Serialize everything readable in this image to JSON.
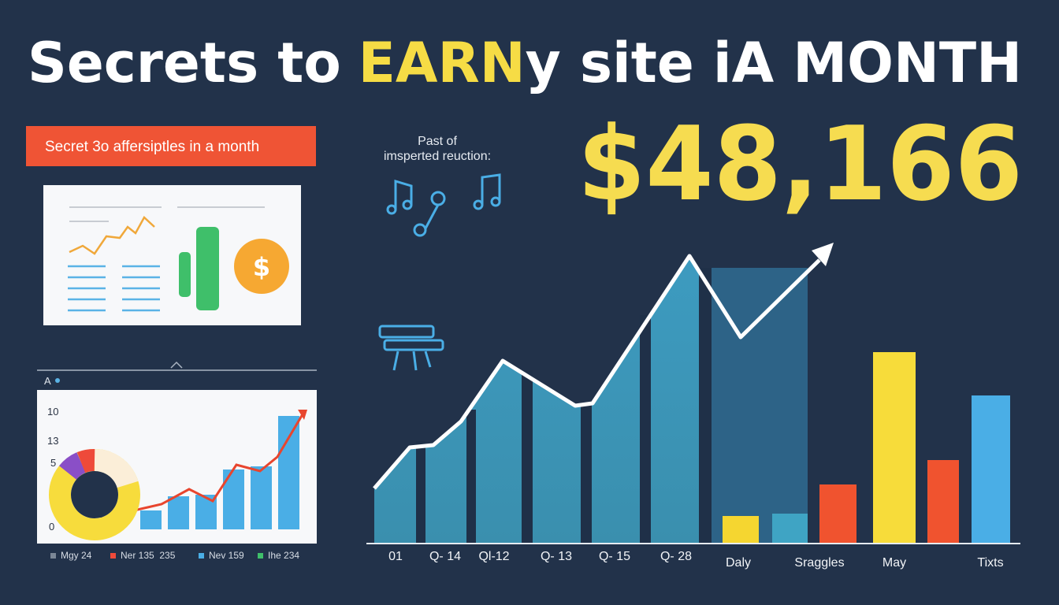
{
  "header": {
    "title_parts": [
      "Secrets to",
      "EARN",
      "y site iA MONTH"
    ]
  },
  "banner": {
    "text": "Secret 3o affersiptles in a month"
  },
  "note": {
    "lines": [
      "Past of",
      "imsperted reuction:"
    ]
  },
  "highlight": {
    "amount": "$48,166"
  },
  "small_chart": {
    "label": "A",
    "axis_labels": [
      "10",
      "13",
      "5",
      "0"
    ],
    "legend": [
      "Mgy 24",
      "Ner 135  235",
      "Nev 159",
      "Ihe 234"
    ]
  },
  "main_chart": {
    "labels": [
      "01",
      "Q- 14",
      "Ql-12",
      "Q- 13",
      "Q- 15",
      "Q- 28",
      "Daly",
      "Sraggles",
      "May",
      "Tixts"
    ]
  }
}
